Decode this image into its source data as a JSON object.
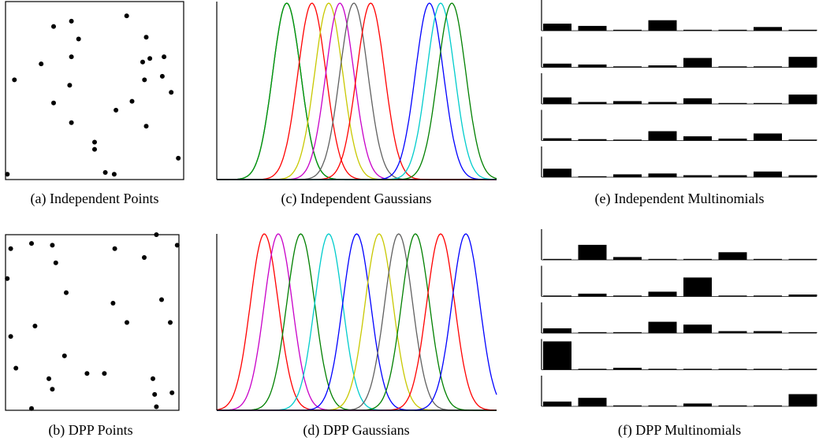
{
  "chart_data": [
    {
      "id": "a",
      "type": "scatter",
      "caption": "(a) Independent Points",
      "xlim": [
        0,
        1
      ],
      "ylim": [
        0,
        1
      ],
      "points": [
        [
          0.27,
          0.14
        ],
        [
          0.37,
          0.11
        ],
        [
          0.68,
          0.08
        ],
        [
          0.41,
          0.21
        ],
        [
          0.79,
          0.2
        ],
        [
          0.05,
          0.44
        ],
        [
          0.2,
          0.35
        ],
        [
          0.37,
          0.31
        ],
        [
          0.81,
          0.32
        ],
        [
          0.77,
          0.34
        ],
        [
          0.89,
          0.31
        ],
        [
          0.78,
          0.44
        ],
        [
          0.88,
          0.42
        ],
        [
          0.36,
          0.47
        ],
        [
          0.93,
          0.51
        ],
        [
          0.27,
          0.57
        ],
        [
          0.71,
          0.56
        ],
        [
          0.62,
          0.61
        ],
        [
          0.37,
          0.68
        ],
        [
          0.79,
          0.7
        ],
        [
          0.5,
          0.79
        ],
        [
          0.5,
          0.83
        ],
        [
          0.97,
          0.88
        ],
        [
          0.01,
          0.97
        ],
        [
          0.56,
          0.96
        ],
        [
          0.61,
          0.97
        ]
      ]
    },
    {
      "id": "b",
      "type": "scatter",
      "caption": "(b) DPP Points",
      "xlim": [
        0,
        1
      ],
      "ylim": [
        0,
        1
      ],
      "points": [
        [
          0.87,
          0.0
        ],
        [
          0.03,
          0.08
        ],
        [
          0.15,
          0.05
        ],
        [
          0.27,
          0.06
        ],
        [
          0.99,
          0.06
        ],
        [
          0.63,
          0.08
        ],
        [
          0.8,
          0.13
        ],
        [
          0.29,
          0.16
        ],
        [
          0.01,
          0.25
        ],
        [
          0.35,
          0.33
        ],
        [
          0.9,
          0.37
        ],
        [
          0.62,
          0.39
        ],
        [
          0.7,
          0.5
        ],
        [
          0.95,
          0.5
        ],
        [
          0.17,
          0.52
        ],
        [
          0.03,
          0.58
        ],
        [
          0.34,
          0.69
        ],
        [
          0.06,
          0.76
        ],
        [
          0.25,
          0.82
        ],
        [
          0.47,
          0.79
        ],
        [
          0.57,
          0.79
        ],
        [
          0.85,
          0.82
        ],
        [
          0.27,
          0.88
        ],
        [
          0.86,
          0.91
        ],
        [
          0.96,
          0.9
        ],
        [
          0.15,
          0.99
        ],
        [
          0.87,
          0.98
        ]
      ]
    },
    {
      "id": "c",
      "type": "line",
      "caption": "(c) Independent Gaussians",
      "xlim": [
        0,
        1
      ],
      "ylim": [
        0,
        1
      ],
      "sigma": 0.05,
      "colors": [
        "#000080",
        "#00a000",
        "#ff0000",
        "#c8c800",
        "#c800c8",
        "#606060",
        "#ff0000",
        "#0000ff",
        "#00cccc",
        "#008000"
      ],
      "means": [
        0.25,
        0.25,
        0.34,
        0.4,
        0.44,
        0.49,
        0.55,
        0.76,
        0.8,
        0.84
      ]
    },
    {
      "id": "d",
      "type": "line",
      "caption": "(d) DPP Gaussians",
      "xlim": [
        0,
        1
      ],
      "ylim": [
        0,
        1
      ],
      "sigma": 0.05,
      "colors": [
        "#ff0000",
        "#c800c8",
        "#008000",
        "#00cccc",
        "#0000ff",
        "#c8c800",
        "#606060",
        "#008000",
        "#ff0000",
        "#0000ff"
      ],
      "means": [
        0.17,
        0.22,
        0.3,
        0.4,
        0.5,
        0.58,
        0.65,
        0.71,
        0.8,
        0.89
      ]
    },
    {
      "id": "e",
      "type": "bar",
      "caption": "(e) Independent Multinomials",
      "rows": [
        [
          0.25,
          0.17,
          0.03,
          0.37,
          0.03,
          0.03,
          0.13,
          0.03
        ],
        [
          0.13,
          0.1,
          0.03,
          0.07,
          0.33,
          0.03,
          0.03,
          0.37
        ],
        [
          0.23,
          0.07,
          0.1,
          0.07,
          0.2,
          0.03,
          0.03,
          0.33
        ],
        [
          0.08,
          0.05,
          0.03,
          0.33,
          0.15,
          0.07,
          0.25,
          0.03
        ],
        [
          0.3,
          0.03,
          0.1,
          0.13,
          0.07,
          0.07,
          0.2,
          0.07
        ]
      ]
    },
    {
      "id": "f",
      "type": "bar",
      "caption": "(f) DPP Multinomials",
      "rows": [
        [
          0.03,
          0.53,
          0.1,
          0.03,
          0.03,
          0.27,
          0.03,
          0.03
        ],
        [
          0.03,
          0.1,
          0.03,
          0.17,
          0.67,
          0.03,
          0.03,
          0.07
        ],
        [
          0.17,
          0.03,
          0.03,
          0.4,
          0.3,
          0.07,
          0.07,
          0.03
        ],
        [
          1.0,
          0.03,
          0.07,
          0.03,
          0.03,
          0.03,
          0.03,
          0.03
        ],
        [
          0.17,
          0.3,
          0.03,
          0.03,
          0.1,
          0.03,
          0.03,
          0.43
        ]
      ]
    }
  ]
}
